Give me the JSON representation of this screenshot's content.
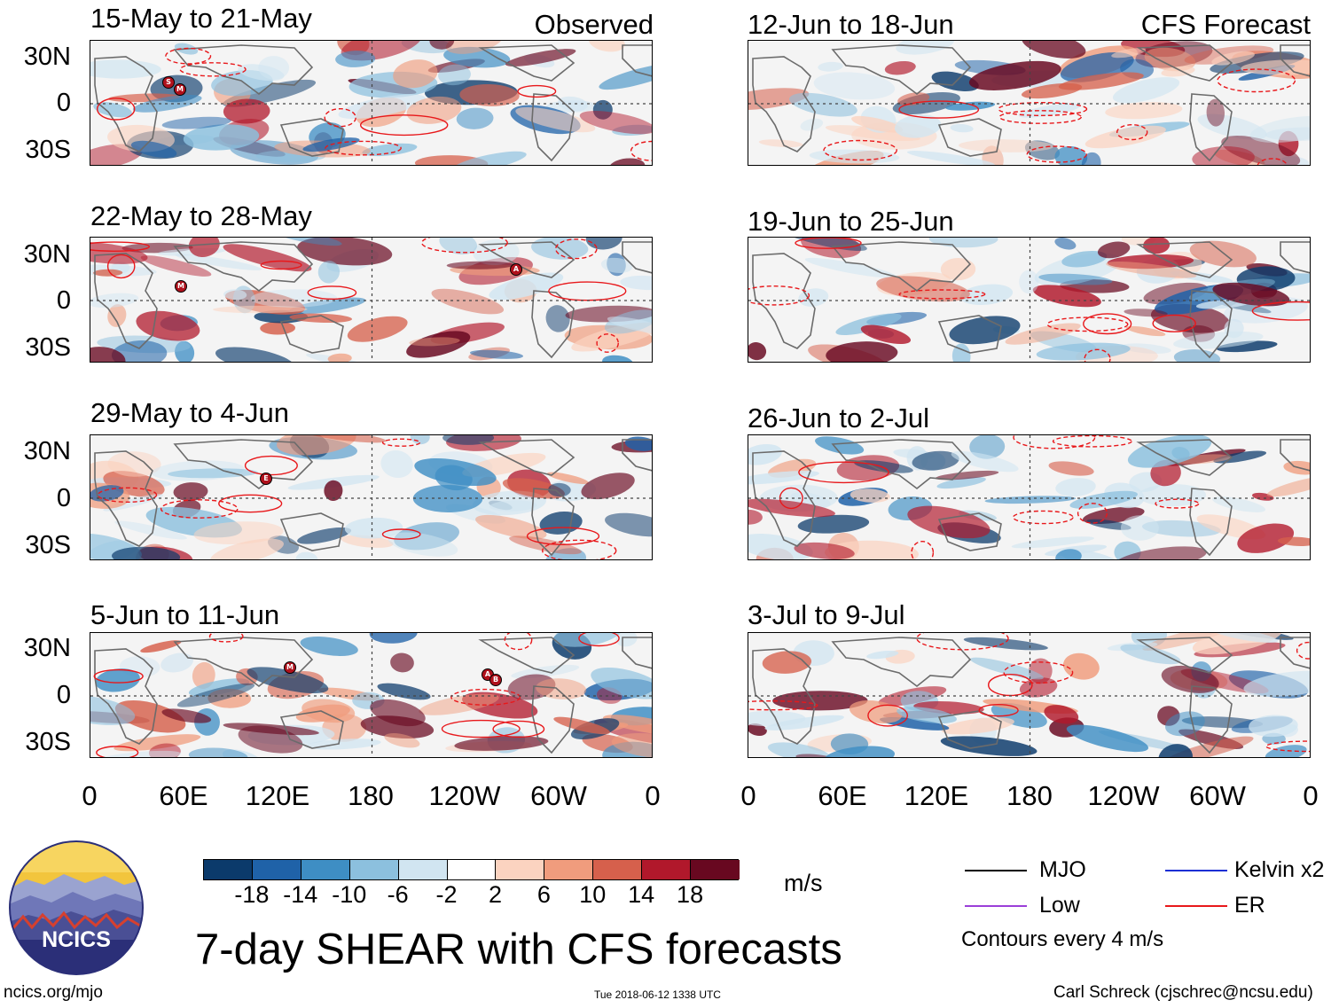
{
  "header": {
    "observed_label": "Observed",
    "forecast_label": "CFS Forecast"
  },
  "panels_observed": [
    {
      "title": "15-May to 21-May"
    },
    {
      "title": "22-May to 28-May"
    },
    {
      "title": "29-May to 4-Jun"
    },
    {
      "title": "5-Jun to 11-Jun"
    }
  ],
  "panels_forecast": [
    {
      "title": "12-Jun to 18-Jun"
    },
    {
      "title": "19-Jun to 25-Jun"
    },
    {
      "title": "26-Jun to 2-Jul"
    },
    {
      "title": "3-Jul to 9-Jul"
    }
  ],
  "lat_labels": [
    "30N",
    "0",
    "30S"
  ],
  "lon_labels": [
    "0",
    "60E",
    "120E",
    "180",
    "120W",
    "60W",
    "0"
  ],
  "storm_markers": {
    "p1": [
      "S",
      "M"
    ],
    "p2_left": [
      "M"
    ],
    "p2_right": [
      "A"
    ],
    "p3": [
      "E"
    ],
    "p4_left": [
      "M"
    ],
    "p4_right": [
      "A",
      "B"
    ]
  },
  "colorbar": {
    "colors": [
      "#0b3a6b",
      "#1f62a8",
      "#3e8ec4",
      "#8cc0de",
      "#d1e5f1",
      "#ffffff",
      "#fbd3c0",
      "#f09c7d",
      "#d6604c",
      "#b1182b",
      "#680820"
    ],
    "ticks": [
      "-18",
      "-14",
      "-10",
      "-6",
      "-2",
      "2",
      "6",
      "10",
      "14",
      "18"
    ],
    "units": "m/s"
  },
  "logo": {
    "text": "NCICS"
  },
  "main_title": "7-day SHEAR with CFS forecasts",
  "legend": {
    "items": [
      {
        "label": "MJO",
        "color": "#000000"
      },
      {
        "label": "Kelvin x2",
        "color": "#1a2fd4"
      },
      {
        "label": "Low",
        "color": "#9b3fd8"
      },
      {
        "label": "ER",
        "color": "#e8181b"
      }
    ],
    "note": "Contours every 4 m/s"
  },
  "footer": {
    "url": "ncics.org/mjo",
    "timestamp": "Tue 2018-06-12 1338 UTC",
    "author": "Carl Schreck (cjschrec@ncsu.edu)"
  }
}
